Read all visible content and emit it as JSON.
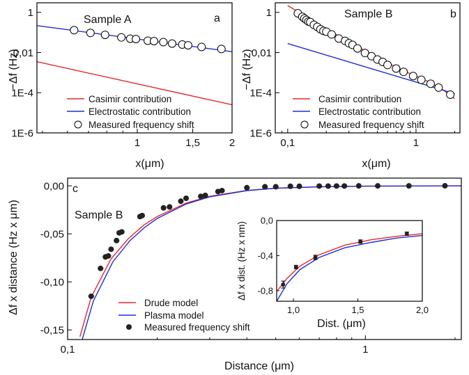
{
  "figure": {
    "panels": [
      {
        "panel_label": "a",
        "sample_label": "Sample A",
        "xlabel": "x(μm)",
        "ylabel": "−Δf (Hz)",
        "legend": [
          "Casimir contribution",
          "Electrostatic contribution",
          "Measured frequency shift"
        ]
      },
      {
        "panel_label": "b",
        "sample_label": "Sample B",
        "xlabel": "x(μm)",
        "ylabel": "−Δf (Hz)",
        "legend": [
          "Casimir contribution",
          "Electrostatic contribution",
          "Measured frequency shift"
        ]
      },
      {
        "panel_label": "c",
        "sample_label": "Sample B",
        "xlabel": "Distance (μm)",
        "ylabel": "Δf x distance (Hz x μm)",
        "legend": [
          "Drude model",
          "Plasma model",
          "Measured frequency shift"
        ],
        "inset": {
          "xlabel": "Dist. (μm)",
          "ylabel": "Δf x dist. (Hz x nm)"
        }
      }
    ]
  },
  "colors": {
    "red": "#e8262b",
    "blue": "#1f2fd6",
    "marker_fill": "#ffffff",
    "marker_dark": "#222222"
  },
  "chart_data": [
    {
      "type": "scatter",
      "panel": "a",
      "xscale": "log",
      "yscale": "log",
      "xlim": [
        0.48,
        2.0
      ],
      "ylim": [
        1e-06,
        3
      ],
      "xticks": [
        1,
        1.5,
        2
      ],
      "xticklabels": [
        "1",
        "1,5",
        "2"
      ],
      "yticks": [
        1e-06,
        0.0001,
        0.01,
        1
      ],
      "yticklabels": [
        "1E-6",
        "1E-4",
        "0,01",
        "1"
      ],
      "series": [
        {
          "name": "Casimir contribution",
          "type": "line",
          "color": "#e8262b",
          "x": [
            0.48,
            2.0
          ],
          "y": [
            0.0035,
            2.5e-05
          ]
        },
        {
          "name": "Electrostatic contribution",
          "type": "line",
          "color": "#1f2fd6",
          "x": [
            0.48,
            2.0
          ],
          "y": [
            0.22,
            0.011
          ]
        },
        {
          "name": "Measured frequency shift",
          "type": "scatter",
          "marker": "open-circle",
          "x": [
            0.63,
            0.71,
            0.79,
            0.89,
            0.95,
            0.99,
            1.08,
            1.13,
            1.21,
            1.29,
            1.39,
            1.45,
            1.6,
            1.85
          ],
          "y": [
            0.13,
            0.095,
            0.076,
            0.057,
            0.049,
            0.047,
            0.039,
            0.037,
            0.033,
            0.028,
            0.025,
            0.023,
            0.019,
            0.015
          ]
        }
      ]
    },
    {
      "type": "scatter",
      "panel": "b",
      "xscale": "log",
      "yscale": "log",
      "xlim": [
        0.08,
        2.2
      ],
      "ylim": [
        1e-06,
        3
      ],
      "xticks": [
        0.1,
        1
      ],
      "xticklabels": [
        "0,1",
        "1"
      ],
      "yticks": [
        1e-06,
        0.0001,
        0.01,
        1
      ],
      "yticklabels": [
        "1E-6",
        "1E-4",
        "0,01",
        "1"
      ],
      "series": [
        {
          "name": "Casimir contribution",
          "type": "line",
          "color": "#e8262b",
          "x": [
            0.1,
            0.15,
            0.2,
            0.3,
            0.5,
            0.8,
            1.2,
            1.6,
            2.0
          ],
          "y": [
            2.2,
            0.45,
            0.15,
            0.035,
            0.0055,
            0.00125,
            0.0004,
            0.00015,
            5e-05
          ]
        },
        {
          "name": "Electrostatic contribution",
          "type": "line",
          "color": "#1f2fd6",
          "x": [
            0.1,
            2.0
          ],
          "y": [
            0.028,
            9e-05
          ]
        },
        {
          "name": "Measured frequency shift",
          "type": "scatter",
          "marker": "open-circle",
          "x": [
            0.12,
            0.13,
            0.135,
            0.14,
            0.145,
            0.15,
            0.16,
            0.17,
            0.18,
            0.19,
            0.2,
            0.22,
            0.25,
            0.28,
            0.3,
            0.32,
            0.35,
            0.4,
            0.45,
            0.5,
            0.55,
            0.6,
            0.7,
            0.8,
            0.95,
            1.1,
            1.3,
            1.5,
            1.85
          ],
          "y": [
            0.9,
            0.6,
            0.5,
            0.42,
            0.35,
            0.33,
            0.24,
            0.19,
            0.145,
            0.12,
            0.11,
            0.08,
            0.05,
            0.038,
            0.029,
            0.024,
            0.016,
            0.0095,
            0.0066,
            0.0045,
            0.0034,
            0.0024,
            0.0016,
            0.0011,
            0.00068,
            0.00044,
            0.00028,
            0.00018,
            8e-05
          ]
        }
      ]
    },
    {
      "type": "scatter",
      "panel": "c",
      "xscale": "log",
      "yscale": "linear",
      "xlim": [
        0.1,
        2.1
      ],
      "ylim": [
        -0.16,
        0.008
      ],
      "xticks": [
        0.1,
        1
      ],
      "xticklabels": [
        "0,1",
        "1"
      ],
      "yticks": [
        0,
        -0.05,
        -0.1,
        -0.15
      ],
      "yticklabels": [
        "0,00",
        "-0,05",
        "-0,10",
        "-0,15"
      ],
      "series": [
        {
          "name": "Drude model",
          "type": "line",
          "color": "#e8262b",
          "x": [
            0.11,
            0.12,
            0.14,
            0.16,
            0.18,
            0.2,
            0.25,
            0.3,
            0.4,
            0.5,
            0.7,
            1.0,
            1.5,
            2.1
          ],
          "y": [
            -0.157,
            -0.116,
            -0.076,
            -0.055,
            -0.041,
            -0.032,
            -0.018,
            -0.011,
            -0.0048,
            -0.0025,
            -0.001,
            -0.0004,
            -0.00015,
            -5e-05
          ]
        },
        {
          "name": "Plasma model",
          "type": "line",
          "color": "#1f2fd6",
          "x": [
            0.112,
            0.122,
            0.142,
            0.162,
            0.182,
            0.2,
            0.25,
            0.3,
            0.4,
            0.5,
            0.7,
            1.0,
            1.5,
            2.1
          ],
          "y": [
            -0.16,
            -0.12,
            -0.079,
            -0.057,
            -0.043,
            -0.034,
            -0.019,
            -0.0115,
            -0.005,
            -0.0026,
            -0.0011,
            -0.0004,
            -0.00015,
            -5e-05
          ]
        },
        {
          "name": "Measured frequency shift",
          "type": "scatter",
          "marker": "filled-circle",
          "x": [
            0.12,
            0.129,
            0.134,
            0.137,
            0.14,
            0.146,
            0.149,
            0.152,
            0.175,
            0.178,
            0.21,
            0.22,
            0.24,
            0.25,
            0.28,
            0.29,
            0.32,
            0.33,
            0.4,
            0.46,
            0.5,
            0.56,
            0.6,
            0.7,
            0.75,
            0.8,
            0.85,
            0.95,
            1.1,
            1.4,
            1.85
          ],
          "y": [
            -0.115,
            -0.086,
            -0.074,
            -0.073,
            -0.066,
            -0.057,
            -0.049,
            -0.048,
            -0.032,
            -0.031,
            -0.023,
            -0.022,
            -0.016,
            -0.013,
            -0.011,
            -0.01,
            -0.006,
            -0.005,
            -0.002,
            -0.001,
            -0.001,
            -0.0005,
            -0.0005,
            -0.0003,
            -0.0003,
            -0.0002,
            -0.0002,
            -0.0001,
            -0.0001,
            -0.0001,
            0.0
          ]
        }
      ]
    },
    {
      "type": "scatter",
      "panel": "c-inset",
      "xscale": "linear",
      "yscale": "linear",
      "xlim": [
        0.87,
        2.0
      ],
      "ylim": [
        -0.92,
        0.0
      ],
      "xticks": [
        1.0,
        1.5,
        2.0
      ],
      "xticklabels": [
        "1,0",
        "1,5",
        "2,0"
      ],
      "yticks": [
        0.0,
        -0.4,
        -0.8
      ],
      "yticklabels": [
        "0,0",
        "-0,4",
        "-0,8"
      ],
      "series": [
        {
          "name": "Drude model",
          "type": "line",
          "color": "#e8262b",
          "x": [
            0.87,
            0.95,
            1.05,
            1.2,
            1.4,
            1.6,
            1.8,
            2.0
          ],
          "y": [
            -0.81,
            -0.66,
            -0.52,
            -0.39,
            -0.28,
            -0.22,
            -0.18,
            -0.15
          ]
        },
        {
          "name": "Plasma model",
          "type": "line",
          "color": "#1f2fd6",
          "x": [
            0.87,
            0.95,
            1.05,
            1.2,
            1.4,
            1.6,
            1.8,
            2.0
          ],
          "y": [
            -0.92,
            -0.72,
            -0.56,
            -0.42,
            -0.31,
            -0.25,
            -0.2,
            -0.17
          ]
        },
        {
          "name": "Measured frequency shift",
          "type": "scatter",
          "marker": "filled-circle",
          "x": [
            0.92,
            1.02,
            1.17,
            1.52,
            1.88
          ],
          "y": [
            -0.73,
            -0.53,
            -0.42,
            -0.24,
            -0.15
          ],
          "yerr": [
            0.04,
            0.02,
            0.025,
            0.02,
            0.02
          ]
        }
      ]
    }
  ]
}
